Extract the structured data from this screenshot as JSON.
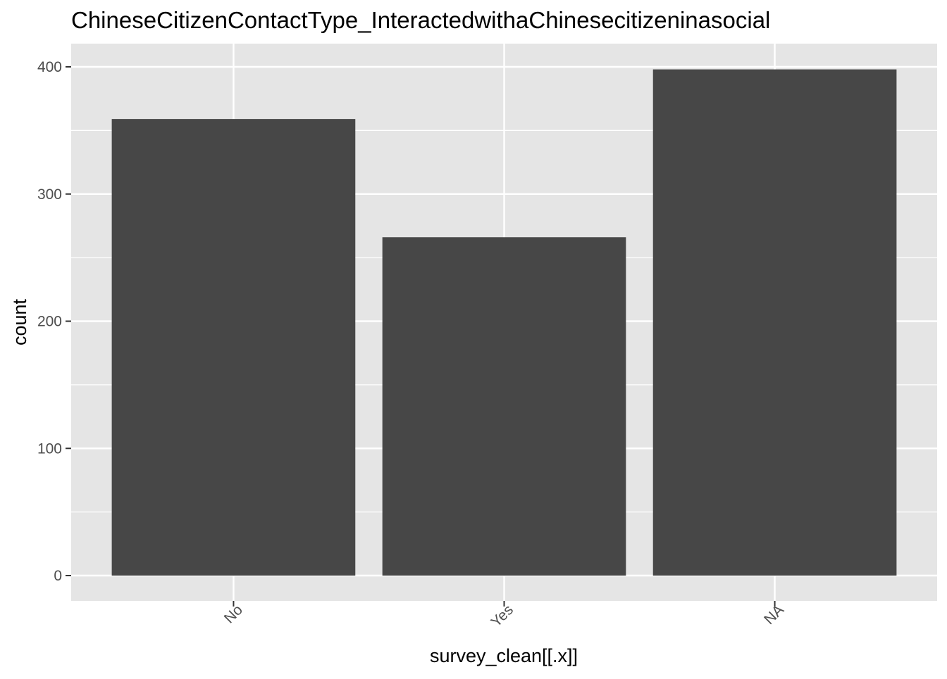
{
  "chart_data": {
    "type": "bar",
    "title": "ChineseCitizenContactType_InteractedwithaChinesecitizeninasocial",
    "xlabel": "survey_clean[[.x]]",
    "ylabel": "count",
    "categories": [
      "No",
      "Yes",
      "NA"
    ],
    "values": [
      359,
      266,
      398
    ],
    "ylim": [
      0,
      420
    ],
    "yticks": [
      0,
      100,
      200,
      300,
      400
    ],
    "ytick_labels": [
      "0",
      "100",
      "200",
      "300",
      "400"
    ],
    "grid": true,
    "legend": "none",
    "colors": {
      "panel_background": "#e5e5e5",
      "grid": "#ffffff",
      "bar_fill": "#474747",
      "text": "#000000",
      "tick_text": "#4d4d4d",
      "tick_mark": "#333333"
    }
  }
}
